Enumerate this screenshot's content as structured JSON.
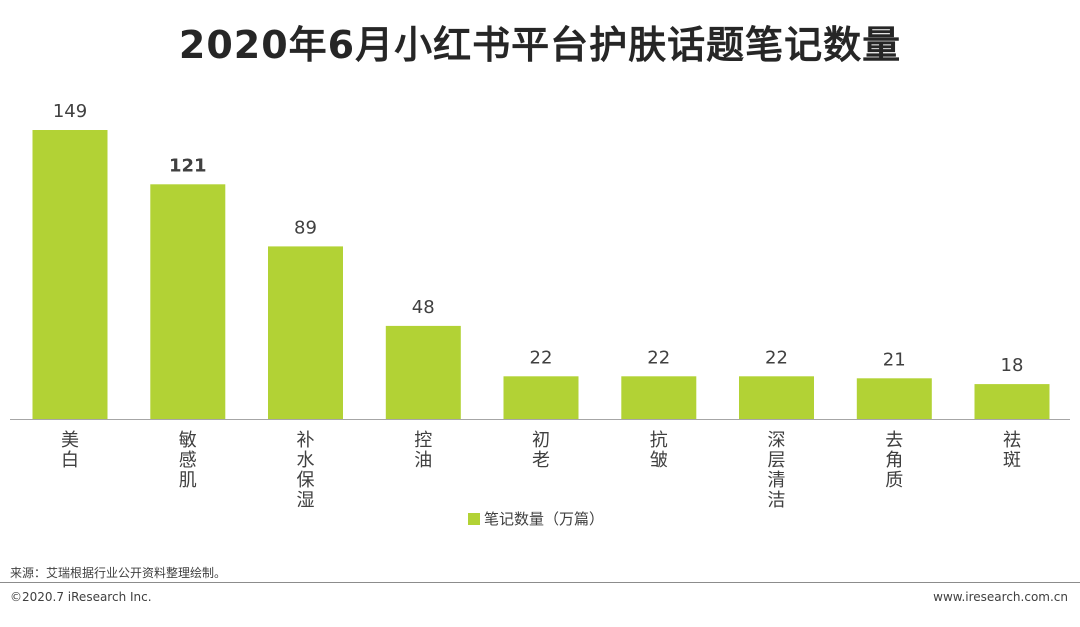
{
  "title": "2020年6月小红书平台护肤话题笔记数量",
  "chart_data": {
    "type": "bar",
    "categories": [
      "美白",
      "敏感肌",
      "补水保湿",
      "控油",
      "初老",
      "抗皱",
      "深层清洁",
      "去角质",
      "祛斑"
    ],
    "series": [
      {
        "name": "笔记数量（万篇）",
        "values": [
          149,
          121,
          89,
          48,
          22,
          22,
          22,
          21,
          18
        ]
      }
    ],
    "bold_labels": [
      1
    ],
    "ylim": [
      0,
      149
    ],
    "grid": false,
    "legend": "bottom-center",
    "bar_color": "#b2d235",
    "label_color": "#404040",
    "axis_color": "#a6a6a6"
  },
  "footer": {
    "source": "来源：艾瑞根据行业公开资料整理绘制。",
    "copyright": "©2020.7 iResearch Inc.",
    "website": "www.iresearch.com.cn"
  }
}
